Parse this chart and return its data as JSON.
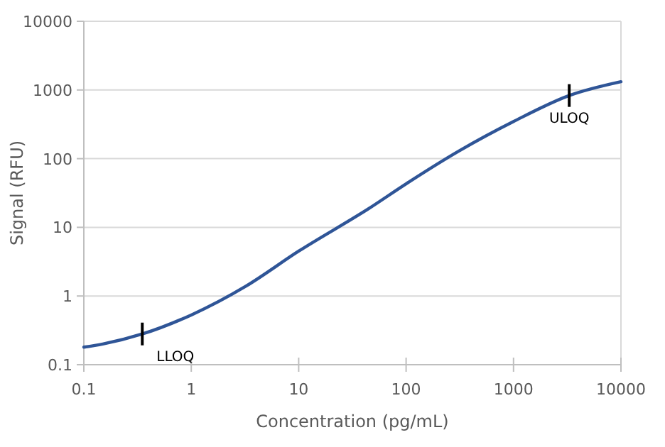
{
  "chart_data": {
    "type": "line",
    "xlabel": "Concentration (pg/mL)",
    "ylabel": "Signal (RFU)",
    "log": "xy",
    "grid": "y",
    "marker": "none",
    "line_style": "solid",
    "xlim": [
      0.1,
      10000
    ],
    "xticks": [
      0.1,
      1,
      10,
      100,
      1000,
      10000
    ],
    "ylim": [
      0.1,
      10000
    ],
    "yticks": [
      0.1,
      1,
      10,
      100,
      1000,
      10000
    ],
    "series": [
      {
        "color": "#2f5597",
        "x": [
          0.1,
          0.15,
          0.35,
          1,
          3.2,
          10,
          45,
          100,
          310,
          1000,
          3300,
          10000
        ],
        "values": [
          0.18,
          0.2,
          0.28,
          0.53,
          1.38,
          4.5,
          18.8,
          43,
          129,
          347,
          830,
          1320
        ]
      }
    ],
    "annotations": [
      {
        "text": "LLOQ",
        "x": 0.35,
        "y": 0.28
      },
      {
        "text": "ULOQ",
        "x": 3300,
        "y": 830
      }
    ]
  }
}
